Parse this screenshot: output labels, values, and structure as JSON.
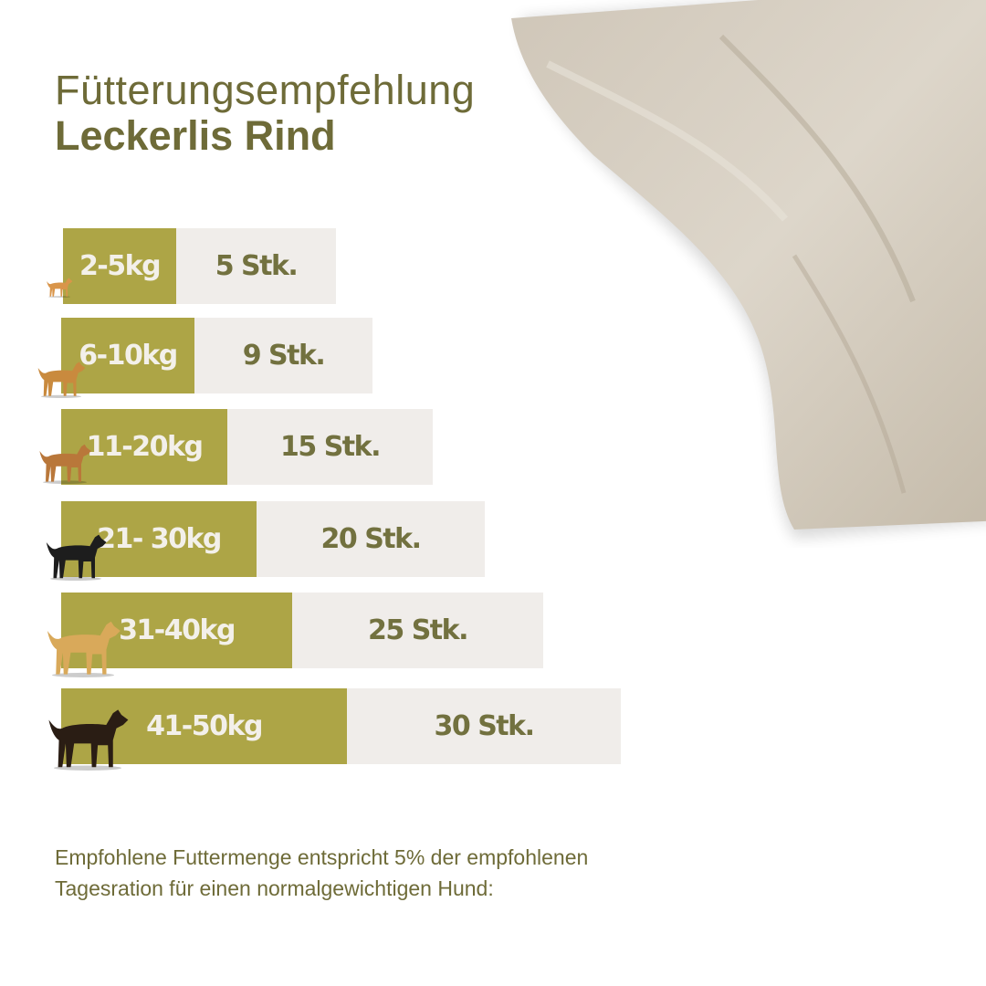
{
  "title": {
    "line1": "Fütterungsempfehlung",
    "line2": "Leckerlis Rind"
  },
  "colors": {
    "weight_bar": "#ada546",
    "amount_bar": "#f0edea",
    "text": "#6e6b38"
  },
  "chart_data": {
    "type": "bar",
    "orientation": "horizontal",
    "categories": [
      "2-5kg",
      "6-10kg",
      "11-20kg",
      "21- 30kg",
      "31-40kg",
      "41-50kg"
    ],
    "values": [
      5,
      9,
      15,
      20,
      25,
      30
    ],
    "value_labels": [
      "5 Stk.",
      "9 Stk.",
      "15 Stk.",
      "20 Stk.",
      "25 Stk.",
      "30 Stk."
    ],
    "unit": "Stk.",
    "icons": [
      "chihuahua-icon",
      "small-mixed-dog-icon",
      "beagle-icon",
      "border-collie-icon",
      "labrador-icon",
      "rottweiler-icon"
    ]
  },
  "note": "Empfohlene Futtermenge entspricht 5% der empfohlenen Tagesration für einen normalgewichtigen Hund:"
}
